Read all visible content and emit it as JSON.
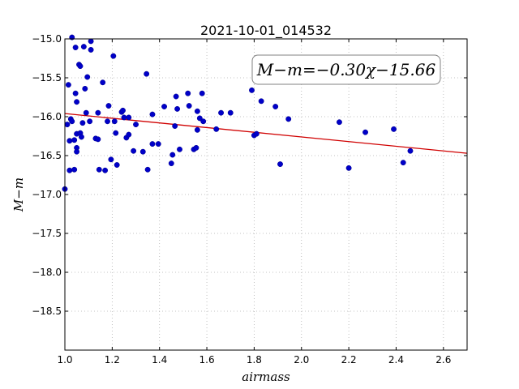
{
  "chart_data": {
    "type": "scatter",
    "title": "2021-10-01_014532",
    "xlabel": "airmass",
    "ylabel": "M−m",
    "xlim": [
      1.0,
      2.7
    ],
    "ylim": [
      -19.0,
      -15.0
    ],
    "y_inverted": true,
    "grid": true,
    "x_ticks": [
      "1.0",
      "1.2",
      "1.4",
      "1.6",
      "1.8",
      "2.0",
      "2.2",
      "2.4",
      "2.6"
    ],
    "y_ticks": [
      "−15.0",
      "−15.5",
      "−16.0",
      "−16.5",
      "−17.0",
      "−17.5",
      "−18.0",
      "−18.5"
    ],
    "point_color": "#0000c8",
    "fit_line_color": "#d00000",
    "annotation": "M−m=−0.30χ−15.66",
    "fit": {
      "slope": -0.3,
      "intercept": -15.66
    },
    "points": [
      [
        1.0,
        -16.93
      ],
      [
        1.01,
        -16.1
      ],
      [
        1.015,
        -15.59
      ],
      [
        1.02,
        -16.31
      ],
      [
        1.02,
        -16.69
      ],
      [
        1.025,
        -16.03
      ],
      [
        1.03,
        -16.06
      ],
      [
        1.03,
        -14.98
      ],
      [
        1.04,
        -16.3
      ],
      [
        1.04,
        -16.68
      ],
      [
        1.045,
        -15.11
      ],
      [
        1.045,
        -15.7
      ],
      [
        1.05,
        -15.81
      ],
      [
        1.05,
        -16.22
      ],
      [
        1.05,
        -16.4
      ],
      [
        1.05,
        -16.45
      ],
      [
        1.06,
        -15.33
      ],
      [
        1.065,
        -15.35
      ],
      [
        1.065,
        -16.21
      ],
      [
        1.07,
        -16.26
      ],
      [
        1.075,
        -16.08
      ],
      [
        1.08,
        -15.1
      ],
      [
        1.085,
        -15.64
      ],
      [
        1.09,
        -15.95
      ],
      [
        1.095,
        -15.49
      ],
      [
        1.105,
        -16.06
      ],
      [
        1.11,
        -15.03
      ],
      [
        1.11,
        -15.14
      ],
      [
        1.13,
        -16.28
      ],
      [
        1.14,
        -16.29
      ],
      [
        1.14,
        -15.95
      ],
      [
        1.145,
        -16.68
      ],
      [
        1.16,
        -15.56
      ],
      [
        1.17,
        -16.69
      ],
      [
        1.18,
        -16.06
      ],
      [
        1.185,
        -15.86
      ],
      [
        1.195,
        -16.55
      ],
      [
        1.205,
        -15.22
      ],
      [
        1.21,
        -16.06
      ],
      [
        1.215,
        -16.21
      ],
      [
        1.22,
        -16.62
      ],
      [
        1.24,
        -15.94
      ],
      [
        1.245,
        -15.92
      ],
      [
        1.25,
        -16.01
      ],
      [
        1.26,
        -16.27
      ],
      [
        1.27,
        -16.01
      ],
      [
        1.27,
        -16.23
      ],
      [
        1.29,
        -16.44
      ],
      [
        1.3,
        -16.1
      ],
      [
        1.33,
        -16.45
      ],
      [
        1.345,
        -15.45
      ],
      [
        1.35,
        -16.68
      ],
      [
        1.37,
        -15.97
      ],
      [
        1.37,
        -16.35
      ],
      [
        1.395,
        -16.35
      ],
      [
        1.42,
        -15.87
      ],
      [
        1.45,
        -16.6
      ],
      [
        1.455,
        -16.49
      ],
      [
        1.465,
        -16.12
      ],
      [
        1.47,
        -15.74
      ],
      [
        1.475,
        -15.9
      ],
      [
        1.485,
        -16.42
      ],
      [
        1.52,
        -15.7
      ],
      [
        1.525,
        -15.86
      ],
      [
        1.545,
        -16.42
      ],
      [
        1.555,
        -16.4
      ],
      [
        1.56,
        -15.93
      ],
      [
        1.56,
        -16.17
      ],
      [
        1.57,
        -16.02
      ],
      [
        1.58,
        -15.7
      ],
      [
        1.585,
        -16.06
      ],
      [
        1.64,
        -16.16
      ],
      [
        1.66,
        -15.95
      ],
      [
        1.7,
        -15.95
      ],
      [
        1.79,
        -15.66
      ],
      [
        1.8,
        -16.24
      ],
      [
        1.81,
        -16.22
      ],
      [
        1.83,
        -15.8
      ],
      [
        1.89,
        -15.87
      ],
      [
        1.91,
        -16.61
      ],
      [
        1.945,
        -16.03
      ],
      [
        2.16,
        -16.07
      ],
      [
        2.2,
        -16.66
      ],
      [
        2.27,
        -16.2
      ],
      [
        2.39,
        -16.16
      ],
      [
        2.43,
        -16.59
      ],
      [
        2.46,
        -16.44
      ]
    ]
  }
}
